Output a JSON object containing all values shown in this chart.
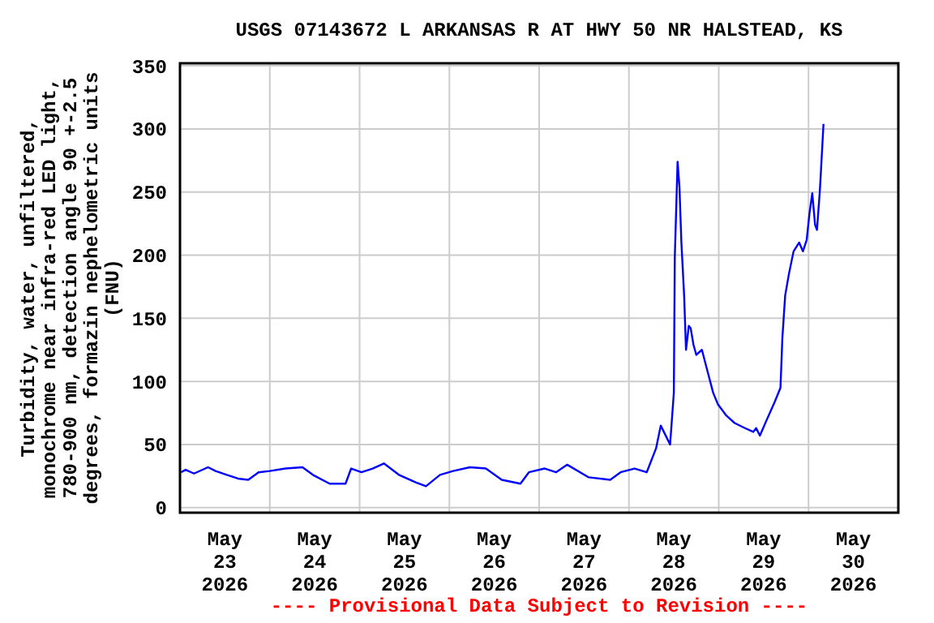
{
  "chart_data": {
    "type": "line",
    "title": "USGS 07143672 L ARKANSAS R AT HWY 50 NR HALSTEAD, KS",
    "ylabel": "Turbidity, water, unfiltered,\nmonochrome near infra-red LED light,\n780-900 nm, detection angle 90 +-2.5\ndegrees, formazin nephelometric units\n(FNU)",
    "annotations": [
      "---- Provisional Data Subject to Revision ----"
    ],
    "x": [
      "2026-05-23T00:15",
      "2026-05-23T01:30",
      "2026-05-23T03:45",
      "2026-05-23T07:30",
      "2026-05-23T09:30",
      "2026-05-23T12:30",
      "2026-05-23T15:30",
      "2026-05-23T18:15",
      "2026-05-23T21:00",
      "2026-05-24T00:00",
      "2026-05-24T04:15",
      "2026-05-24T08:45",
      "2026-05-24T11:30",
      "2026-05-24T16:00",
      "2026-05-24T20:15",
      "2026-05-24T21:45",
      "2026-05-25T00:30",
      "2026-05-25T03:30",
      "2026-05-25T06:30",
      "2026-05-25T10:30",
      "2026-05-25T15:00",
      "2026-05-25T17:45",
      "2026-05-25T21:30",
      "2026-05-26T01:00",
      "2026-05-26T05:30",
      "2026-05-26T09:45",
      "2026-05-26T14:00",
      "2026-05-26T19:00",
      "2026-05-26T21:15",
      "2026-05-27T01:30",
      "2026-05-27T04:30",
      "2026-05-27T07:30",
      "2026-05-27T13:15",
      "2026-05-27T19:00",
      "2026-05-27T21:45",
      "2026-05-28T01:30",
      "2026-05-28T04:45",
      "2026-05-28T07:15",
      "2026-05-28T08:30",
      "2026-05-28T10:00",
      "2026-05-28T11:00",
      "2026-05-28T12:00",
      "2026-05-28T12:15",
      "2026-05-28T13:00",
      "2026-05-28T13:30",
      "2026-05-28T14:00",
      "2026-05-28T14:45",
      "2026-05-28T15:15",
      "2026-05-28T16:00",
      "2026-05-28T16:30",
      "2026-05-28T17:15",
      "2026-05-28T18:00",
      "2026-05-28T19:30",
      "2026-05-28T21:00",
      "2026-05-28T22:30",
      "2026-05-28T23:45",
      "2026-05-29T02:00",
      "2026-05-29T04:15",
      "2026-05-29T07:00",
      "2026-05-29T09:15",
      "2026-05-29T10:00",
      "2026-05-29T11:00",
      "2026-05-29T12:45",
      "2026-05-29T15:00",
      "2026-05-29T16:30",
      "2026-05-29T17:00",
      "2026-05-29T17:45",
      "2026-05-29T18:45",
      "2026-05-29T20:00",
      "2026-05-29T21:30",
      "2026-05-29T22:30",
      "2026-05-29T23:30",
      "2026-05-30T00:15",
      "2026-05-30T01:00",
      "2026-05-30T01:45",
      "2026-05-30T02:15",
      "2026-05-30T03:00",
      "2026-05-30T03:15",
      "2026-05-30T04:00"
    ],
    "series": [
      {
        "color": "#0000ff",
        "values": [
          28,
          30,
          27,
          32,
          29,
          26,
          23,
          22,
          28,
          29,
          31,
          32,
          26,
          19,
          19,
          31,
          28,
          31,
          35,
          26,
          20,
          17,
          26,
          29,
          32,
          31,
          22,
          19,
          28,
          31,
          28,
          34,
          24,
          22,
          28,
          31,
          28,
          47,
          65,
          56,
          50,
          91,
          198,
          274,
          254,
          211,
          168,
          125,
          144,
          142,
          129,
          121,
          125,
          108,
          91,
          82,
          73,
          67,
          63,
          60,
          63,
          57,
          69,
          84,
          95,
          134,
          168,
          185,
          203,
          210,
          203,
          212,
          233,
          249,
          224,
          220,
          250,
          263,
          304
        ]
      }
    ],
    "xlim": [
      "2026-05-23T00:00",
      "2026-05-31T00:00"
    ],
    "xticks": [
      {
        "value": "2026-05-23T12:00",
        "label": "May\n23\n2026"
      },
      {
        "value": "2026-05-24T00:00",
        "label": null
      },
      {
        "value": "2026-05-24T12:00",
        "label": "May\n24\n2026"
      },
      {
        "value": "2026-05-25T00:00",
        "label": null
      },
      {
        "value": "2026-05-25T12:00",
        "label": "May\n25\n2026"
      },
      {
        "value": "2026-05-26T00:00",
        "label": null
      },
      {
        "value": "2026-05-26T12:00",
        "label": "May\n26\n2026"
      },
      {
        "value": "2026-05-27T00:00",
        "label": null
      },
      {
        "value": "2026-05-27T12:00",
        "label": "May\n27\n2026"
      },
      {
        "value": "2026-05-28T00:00",
        "label": null
      },
      {
        "value": "2026-05-28T12:00",
        "label": "May\n28\n2026"
      },
      {
        "value": "2026-05-29T00:00",
        "label": null
      },
      {
        "value": "2026-05-29T12:00",
        "label": "May\n29\n2026"
      },
      {
        "value": "2026-05-30T00:00",
        "label": null
      },
      {
        "value": "2026-05-30T12:00",
        "label": "May\n30\n2026"
      }
    ],
    "ylim": [
      -4,
      352
    ],
    "yticks": [
      0,
      50,
      100,
      150,
      200,
      250,
      300,
      350
    ],
    "grid": true,
    "marker": "none",
    "line_style": "solid"
  }
}
